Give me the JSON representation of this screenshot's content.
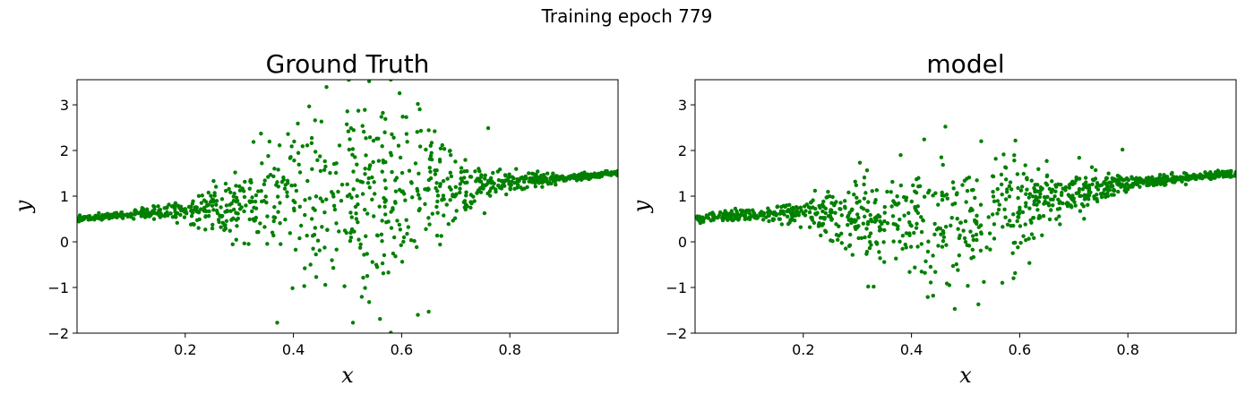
{
  "figure": {
    "suptitle": "Training epoch 779"
  },
  "colors": {
    "marker": "#008000",
    "axes": "#000000",
    "background": "#ffffff"
  },
  "chart_data": [
    {
      "type": "scatter",
      "title": "Ground Truth",
      "xlabel": "x",
      "ylabel": "y",
      "xlim": [
        0.0,
        1.0
      ],
      "ylim": [
        -2,
        3.55
      ],
      "xticks": [
        0.2,
        0.4,
        0.6,
        0.8
      ],
      "yticks": [
        -2,
        -1,
        0,
        1,
        2,
        3
      ],
      "grid": false,
      "legend": "none",
      "marker_color": "#008000",
      "description_of_data": "~1000 points; y = 0.5 + x + noise, noise std small at edges and widest near x=0.5",
      "sample_points": [
        [
          0.37,
          -1.77
        ],
        [
          0.51,
          -1.77
        ],
        [
          0.54,
          -1.32
        ],
        [
          0.56,
          -1.69
        ],
        [
          0.58,
          -1.99
        ],
        [
          0.63,
          -1.6
        ],
        [
          0.65,
          -1.53
        ],
        [
          0.42,
          -0.97
        ],
        [
          0.58,
          3.55
        ],
        [
          0.63,
          3.02
        ],
        [
          0.52,
          2.87
        ],
        [
          0.44,
          2.66
        ],
        [
          0.53,
          2.41
        ],
        [
          0.57,
          2.69
        ],
        [
          0.76,
          2.49
        ],
        [
          0.34,
          2.37
        ],
        [
          0.39,
          2.36
        ],
        [
          0.01,
          0.5
        ],
        [
          0.05,
          0.52
        ],
        [
          0.1,
          0.55
        ],
        [
          0.15,
          0.64
        ],
        [
          0.2,
          0.72
        ],
        [
          0.25,
          0.79
        ],
        [
          0.3,
          0.82
        ],
        [
          0.35,
          0.86
        ],
        [
          0.4,
          0.9
        ],
        [
          0.45,
          0.95
        ],
        [
          0.5,
          1.0
        ],
        [
          0.55,
          1.05
        ],
        [
          0.6,
          1.1
        ],
        [
          0.65,
          1.15
        ],
        [
          0.7,
          1.2
        ],
        [
          0.75,
          1.25
        ],
        [
          0.8,
          1.3
        ],
        [
          0.85,
          1.35
        ],
        [
          0.9,
          1.4
        ],
        [
          0.95,
          1.45
        ],
        [
          0.99,
          1.49
        ]
      ]
    },
    {
      "type": "scatter",
      "title": "model",
      "xlabel": "x",
      "ylabel": "y",
      "xlim": [
        0.0,
        1.0
      ],
      "ylim": [
        -2,
        3.55
      ],
      "xticks": [
        0.2,
        0.4,
        0.6,
        0.8
      ],
      "yticks": [
        -2,
        -1,
        0,
        1,
        2,
        3
      ],
      "grid": false,
      "legend": "none",
      "marker_color": "#008000",
      "description_of_data": "~1000 points; y = 0.5 + x + noise, noise skewed below trend, widest near x=0.45",
      "sample_points": [
        [
          0.48,
          -1.47
        ],
        [
          0.43,
          -1.21
        ],
        [
          0.44,
          -1.18
        ],
        [
          0.47,
          -0.95
        ],
        [
          0.32,
          -0.98
        ],
        [
          0.38,
          1.9
        ],
        [
          0.79,
          2.02
        ],
        [
          0.65,
          1.77
        ],
        [
          0.71,
          1.84
        ],
        [
          0.01,
          0.5
        ],
        [
          0.05,
          0.52
        ],
        [
          0.1,
          0.53
        ],
        [
          0.15,
          0.58
        ],
        [
          0.2,
          0.62
        ],
        [
          0.25,
          0.65
        ],
        [
          0.3,
          0.6
        ],
        [
          0.35,
          0.45
        ],
        [
          0.4,
          0.35
        ],
        [
          0.45,
          0.3
        ],
        [
          0.5,
          0.45
        ],
        [
          0.55,
          0.6
        ],
        [
          0.6,
          0.75
        ],
        [
          0.65,
          0.85
        ],
        [
          0.7,
          0.95
        ],
        [
          0.75,
          1.05
        ],
        [
          0.8,
          1.15
        ],
        [
          0.85,
          1.25
        ],
        [
          0.9,
          1.32
        ],
        [
          0.95,
          1.4
        ],
        [
          0.99,
          1.46
        ]
      ]
    }
  ]
}
